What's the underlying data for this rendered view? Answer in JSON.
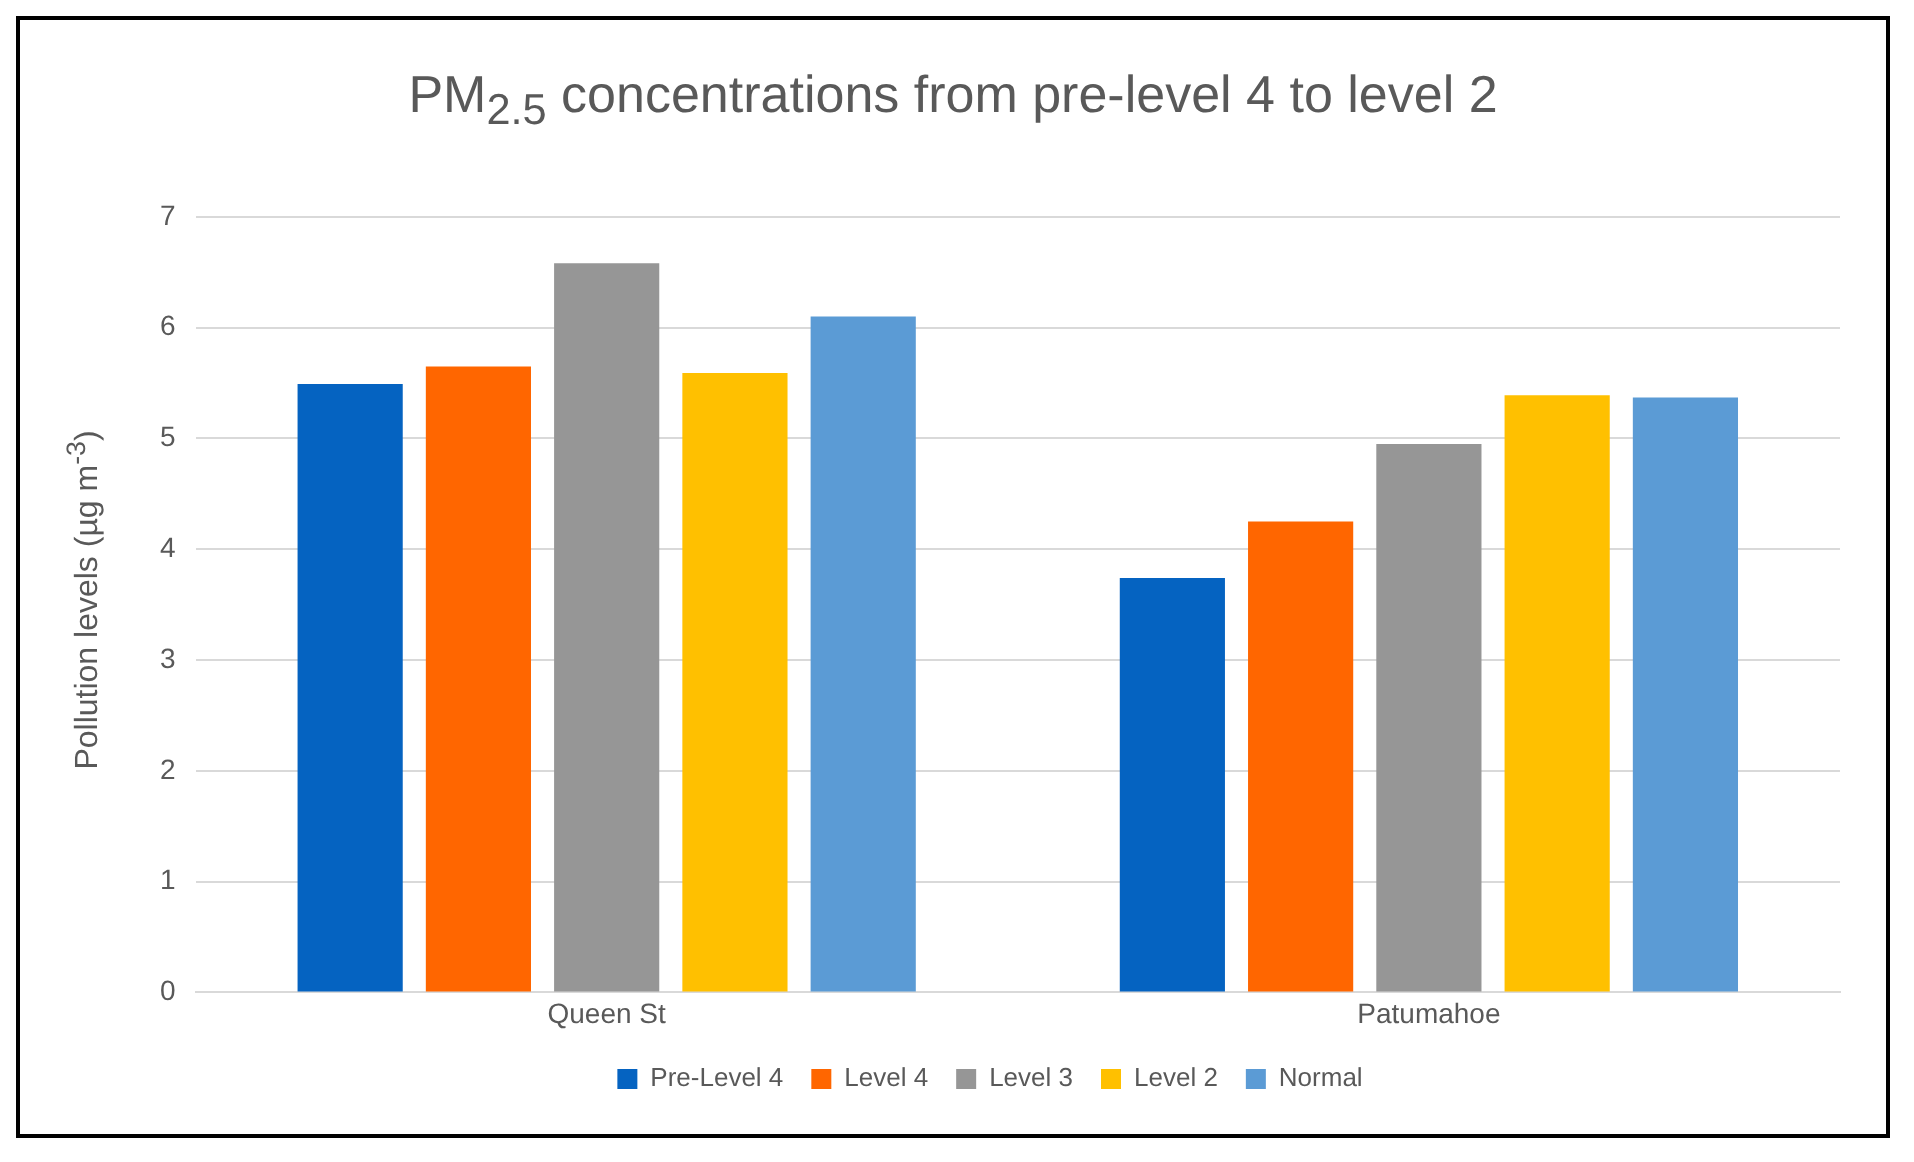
{
  "chart_data": {
    "type": "bar",
    "title": "PM$_{2.5}$ concentrations from pre-level 4 to level 2",
    "ylabel": "Pollution levels (µg m$^{-3}$)",
    "categories": [
      "Queen St",
      "Patumahoe"
    ],
    "series": [
      {
        "name": "Pre-Level 4",
        "color": "#0563c1",
        "values": [
          5.49,
          3.74
        ]
      },
      {
        "name": "Level 4",
        "color": "#ff6600",
        "values": [
          5.65,
          4.25
        ]
      },
      {
        "name": "Level 3",
        "color": "#969696",
        "values": [
          6.58,
          4.95
        ]
      },
      {
        "name": "Level 2",
        "color": "#ffc000",
        "values": [
          5.59,
          5.39
        ]
      },
      {
        "name": "Normal",
        "color": "#5b9bd5",
        "values": [
          6.1,
          5.37
        ]
      }
    ],
    "ylim": [
      0,
      7
    ],
    "yticks": [
      0,
      1,
      2,
      3,
      4,
      5,
      6,
      7
    ],
    "grid": "y",
    "legend": "bottom"
  }
}
